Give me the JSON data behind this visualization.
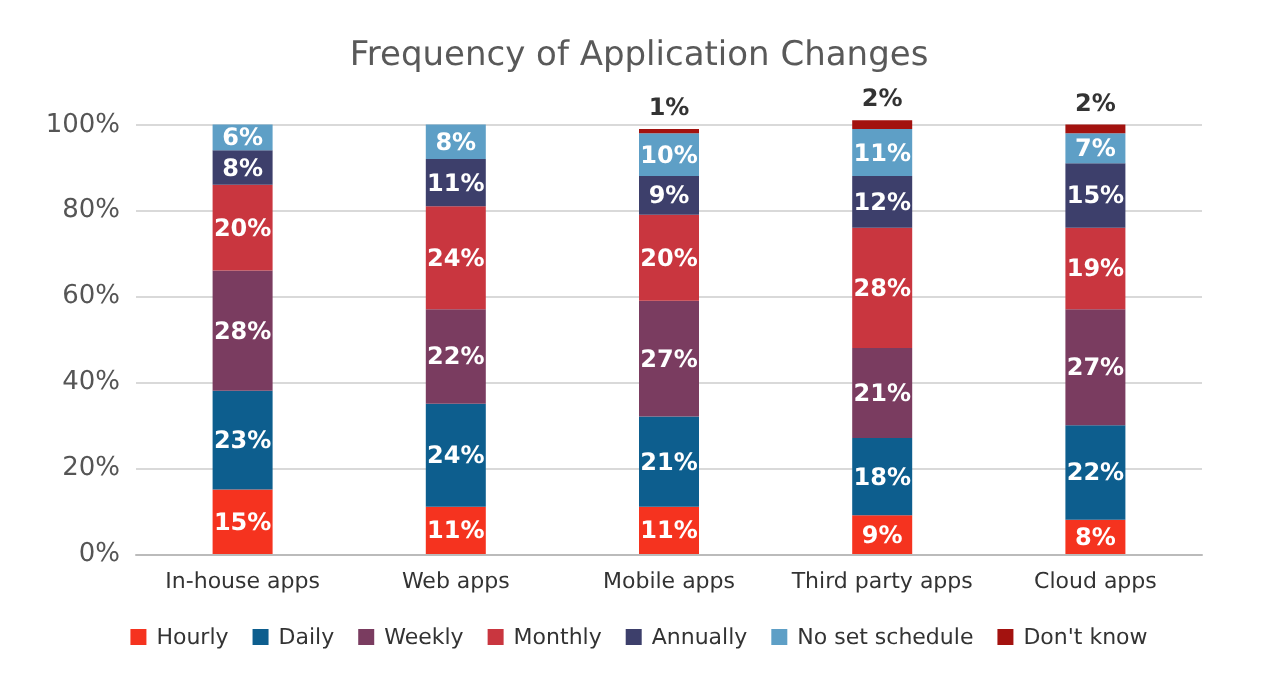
{
  "chart_data": {
    "type": "bar",
    "stacked": true,
    "title": "Frequency of Application Changes",
    "categories": [
      "In-house apps",
      "Web apps",
      "Mobile apps",
      "Third party apps",
      "Cloud apps"
    ],
    "ylim": [
      0,
      102
    ],
    "yticks": [
      {
        "value": 0,
        "label": "0%"
      },
      {
        "value": 20,
        "label": "20%"
      },
      {
        "value": 40,
        "label": "40%"
      },
      {
        "value": 60,
        "label": "60%"
      },
      {
        "value": 80,
        "label": "80%"
      },
      {
        "value": 100,
        "label": "100%"
      }
    ],
    "grid": "y",
    "legend": "bottom",
    "series": [
      {
        "name": "Hourly",
        "color": "#f5331f",
        "values": [
          15,
          11,
          11,
          9,
          8
        ],
        "value_labels": [
          "15%",
          "11%",
          "11%",
          "9%",
          "8%"
        ]
      },
      {
        "name": "Daily",
        "color": "#0d5e8e",
        "values": [
          23,
          24,
          21,
          18,
          22
        ],
        "value_labels": [
          "23%",
          "24%",
          "21%",
          "18%",
          "22%"
        ]
      },
      {
        "name": "Weekly",
        "color": "#7a3c60",
        "values": [
          28,
          22,
          27,
          21,
          27
        ],
        "value_labels": [
          "28%",
          "22%",
          "27%",
          "21%",
          "27%"
        ]
      },
      {
        "name": "Monthly",
        "color": "#c9363f",
        "values": [
          20,
          24,
          20,
          28,
          19
        ],
        "value_labels": [
          "20%",
          "24%",
          "20%",
          "28%",
          "19%"
        ]
      },
      {
        "name": "Annually",
        "color": "#3d3f6b",
        "values": [
          8,
          11,
          9,
          12,
          15
        ],
        "value_labels": [
          "8%",
          "11%",
          "9%",
          "12%",
          "15%"
        ]
      },
      {
        "name": "No set schedule",
        "color": "#5e9fc6",
        "values": [
          6,
          8,
          10,
          11,
          7
        ],
        "value_labels": [
          "6%",
          "8%",
          "10%",
          "11%",
          "7%"
        ]
      },
      {
        "name": "Don't know",
        "color": "#a3120f",
        "values": [
          null,
          null,
          1,
          2,
          2
        ],
        "value_labels": [
          null,
          null,
          "1%",
          "2%",
          "2%"
        ]
      }
    ]
  }
}
